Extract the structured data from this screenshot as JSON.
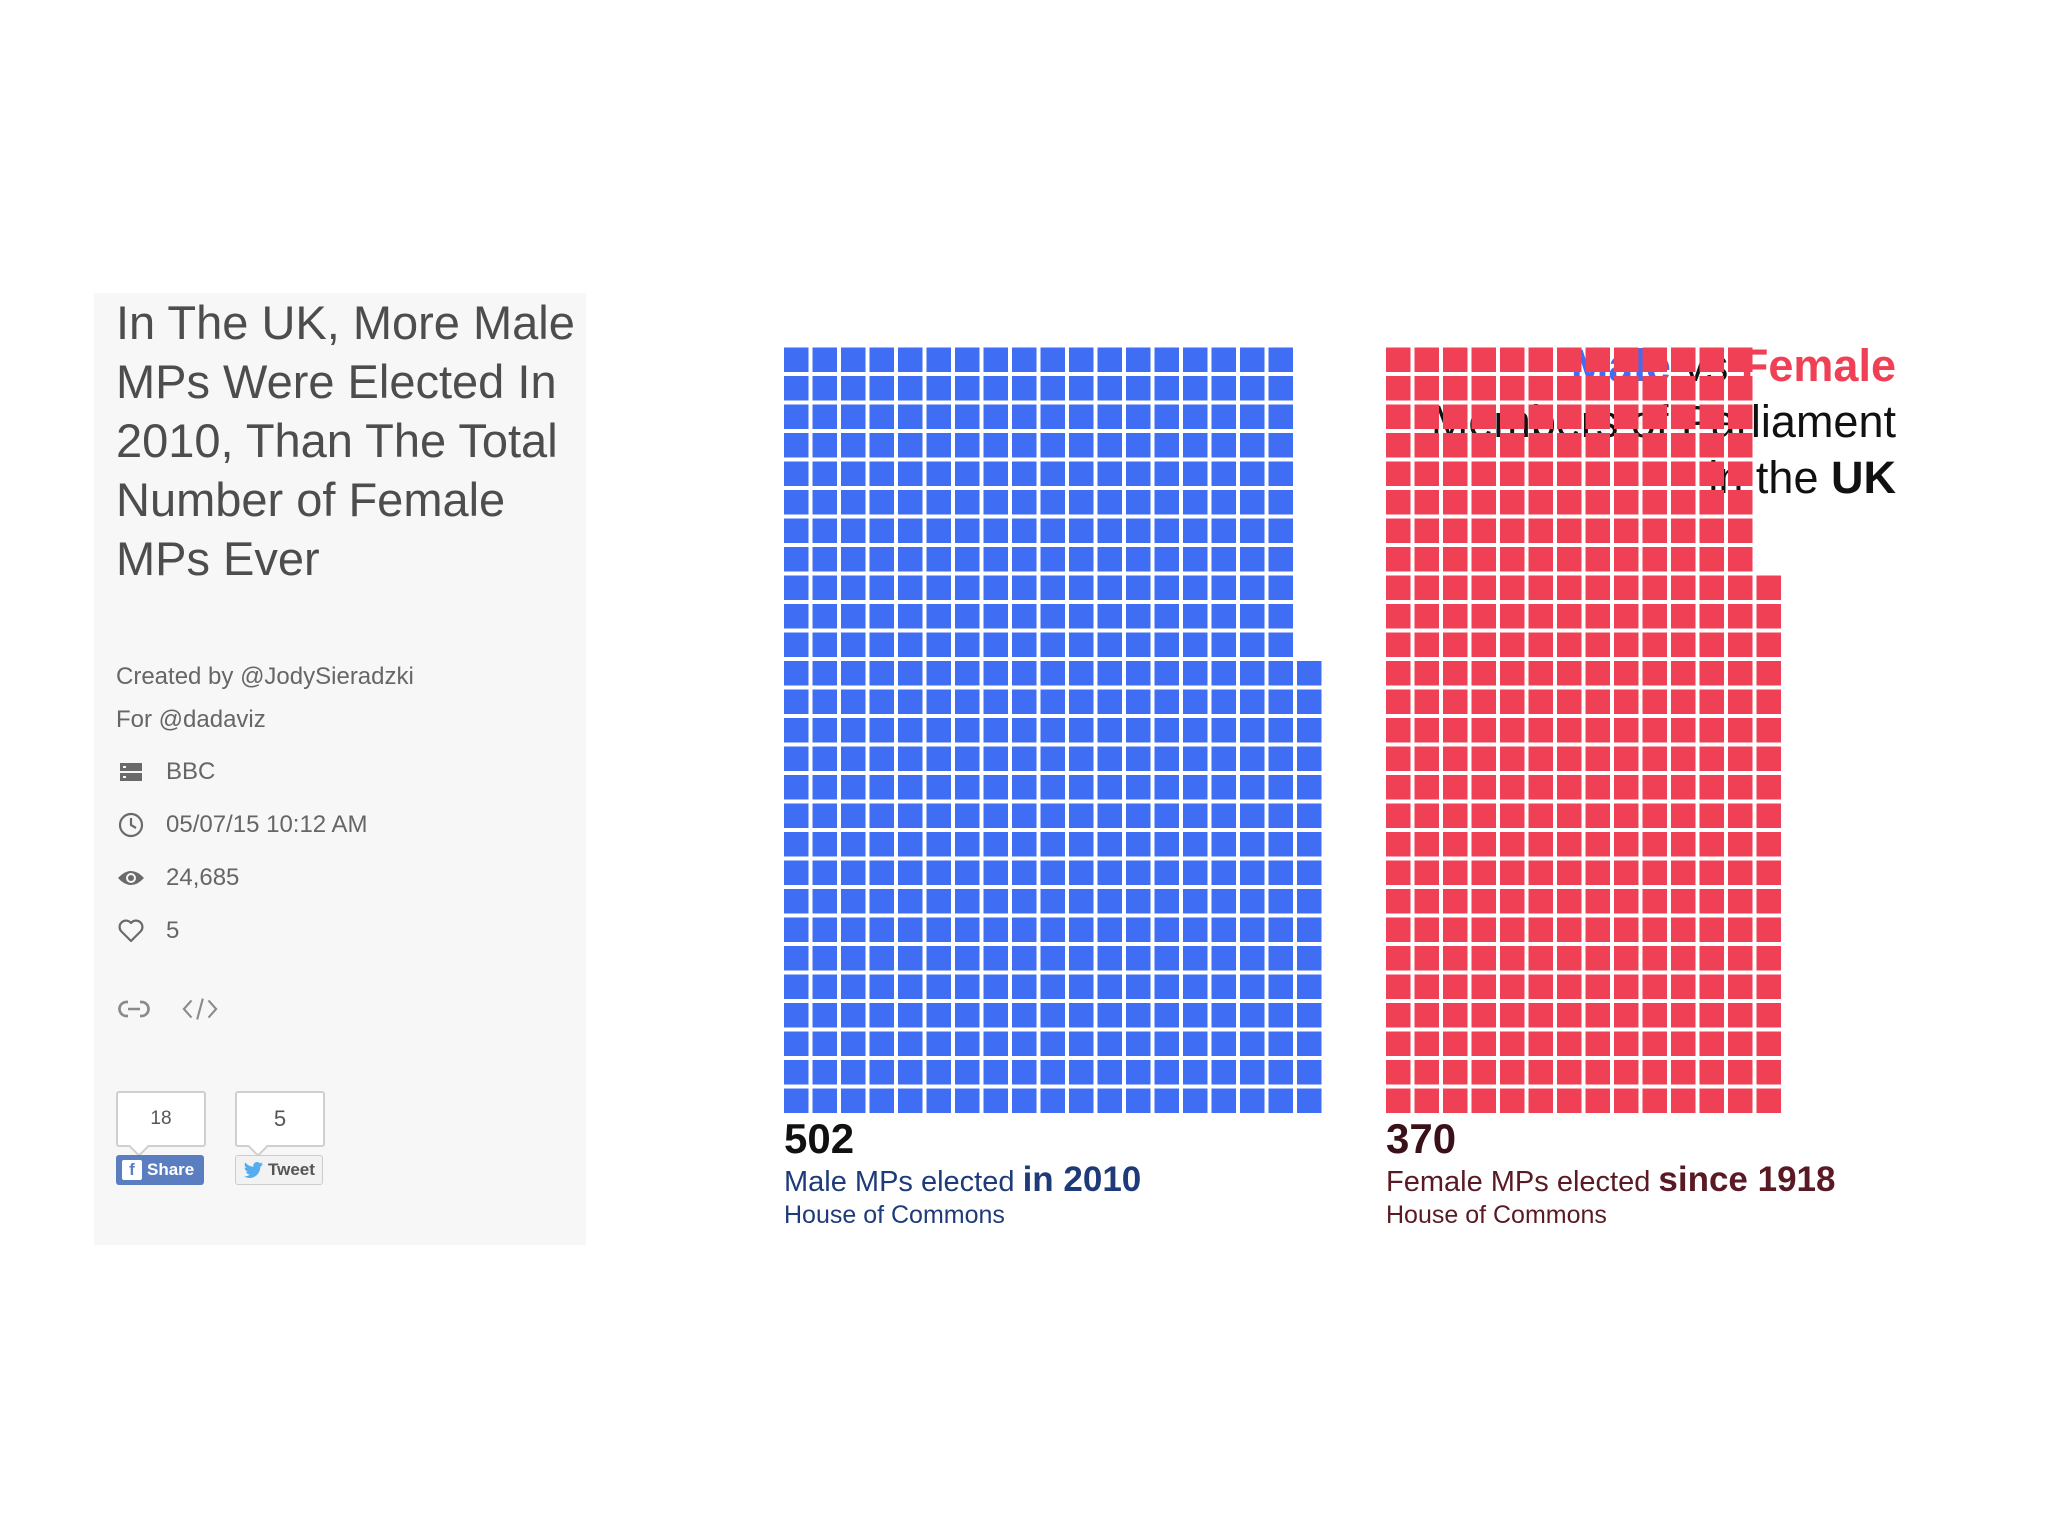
{
  "sidebar": {
    "title": "In The UK, More Male MPs Were Elected In 2010, Than The Total Number of Female MPs Ever",
    "created_by": "Created by @JodySieradzki",
    "for": "For @dadaviz",
    "source": "BBC",
    "date": "05/07/15 10:12 AM",
    "views": "24,685",
    "likes": "5",
    "icons": [
      "source-icon",
      "clock-icon",
      "eye-icon",
      "heart-icon",
      "link-icon",
      "code-icon"
    ],
    "share": {
      "facebook_count": "18",
      "facebook_label": "Share",
      "twitter_count": "5",
      "twitter_label": "Tweet"
    }
  },
  "colors": {
    "male": "#3f6ef5",
    "female": "#ef4055",
    "male_caption": "#1e3a7a",
    "female_caption": "#5a1a24",
    "facebook": "#5b7ec0",
    "twitter": "#55acee"
  },
  "chart_data": {
    "type": "waffle",
    "title_parts": {
      "male": "Male",
      "vs": "vs",
      "female": "Female",
      "line2": "Members of Parliament",
      "line3_prefix": "in the",
      "line3_bold": "UK"
    },
    "series": [
      {
        "name": "Male MPs elected in 2010",
        "value": 502,
        "value_label": "502",
        "caption_prefix": "Male MPs elected",
        "caption_bold": "in 2010",
        "source": "House of Commons"
      },
      {
        "name": "Female MPs elected since 1918",
        "value": 370,
        "value_label": "370",
        "caption_prefix": "Female MPs elected",
        "caption_bold": "since 1918",
        "source": "House of Commons"
      }
    ]
  }
}
